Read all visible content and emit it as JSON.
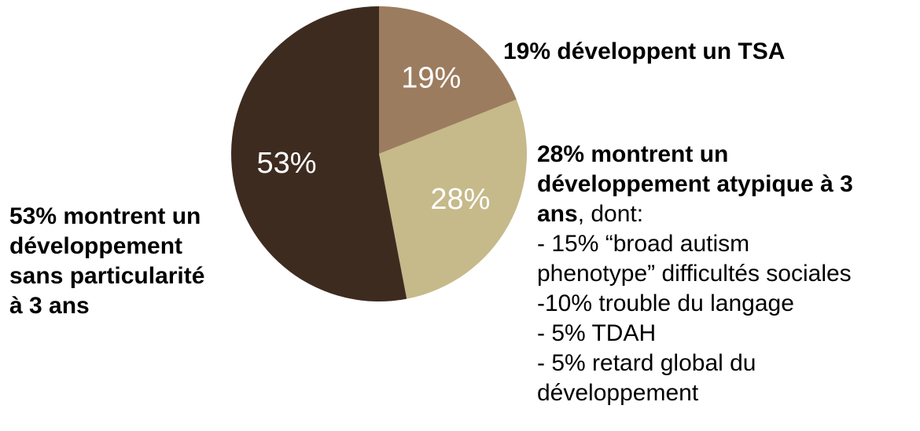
{
  "chart_data": {
    "type": "pie",
    "slices": [
      {
        "label": "19%",
        "value": 19,
        "color": "#9c7c5f"
      },
      {
        "label": "28%",
        "value": 28,
        "color": "#c6b98a"
      },
      {
        "label": "53%",
        "value": 53,
        "color": "#3e2b20"
      }
    ],
    "start_angle": "12 o'clock",
    "direction": "clockwise"
  },
  "annotations": {
    "tsa": "19% développent un TSA",
    "typical": [
      "53% montrent un",
      "développement",
      "sans particularité",
      "à 3 ans"
    ],
    "atypical": {
      "bold_lines": [
        "28% montrent un",
        "développement atypique à 3"
      ],
      "bold_tail": "ans",
      "tail": ", dont:",
      "items": [
        "- 15% “broad autism",
        "phenotype” difficultés sociales",
        "-10% trouble du langage",
        "- 5% TDAH",
        "- 5% retard global du",
        "développement"
      ]
    }
  }
}
